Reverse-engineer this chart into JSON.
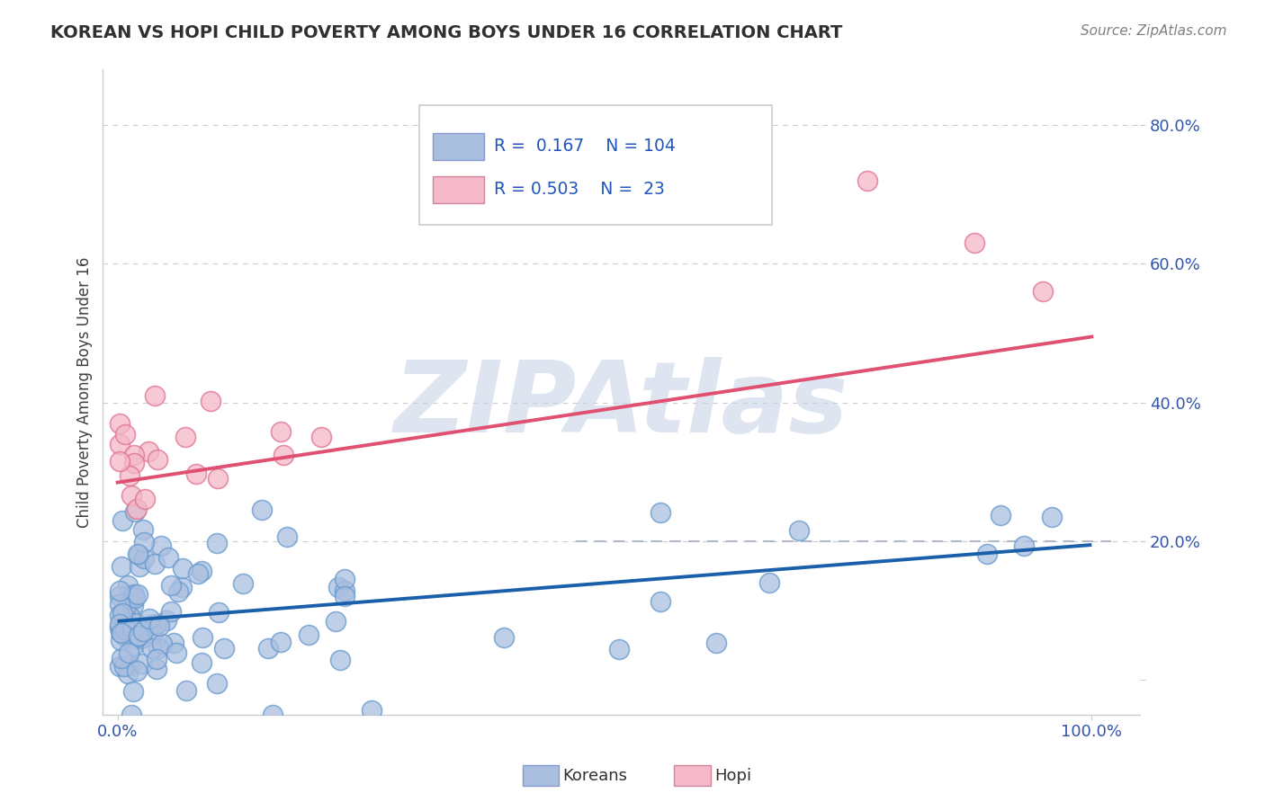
{
  "title": "KOREAN VS HOPI CHILD POVERTY AMONG BOYS UNDER 16 CORRELATION CHART",
  "source": "Source: ZipAtlas.com",
  "ylabel": "Child Poverty Among Boys Under 16",
  "korean_R": 0.167,
  "korean_N": 104,
  "hopi_R": 0.503,
  "hopi_N": 23,
  "korean_color_fill": "#aabfe0",
  "korean_color_edge": "#6699cc",
  "hopi_color_fill": "#f4b8c8",
  "hopi_color_edge": "#e07090",
  "korean_line_color": "#1a5faa",
  "hopi_line_color": "#e05070",
  "dashed_line_color": "#b0b8cc",
  "watermark": "ZIPAtlas",
  "watermark_color": "#c8d4e8",
  "background_color": "#ffffff",
  "grid_color": "#cccccc",
  "title_color": "#303030",
  "axis_label_color": "#404040",
  "tick_label_color": "#3355aa",
  "source_color": "#808080",
  "legend_R_N_color": "#2255bb",
  "korean_line_intercept": 0.085,
  "korean_line_slope": 0.11,
  "hopi_line_intercept": 0.285,
  "hopi_line_slope": 0.21,
  "xlim": [
    -0.015,
    1.05
  ],
  "ylim": [
    -0.05,
    0.88
  ]
}
